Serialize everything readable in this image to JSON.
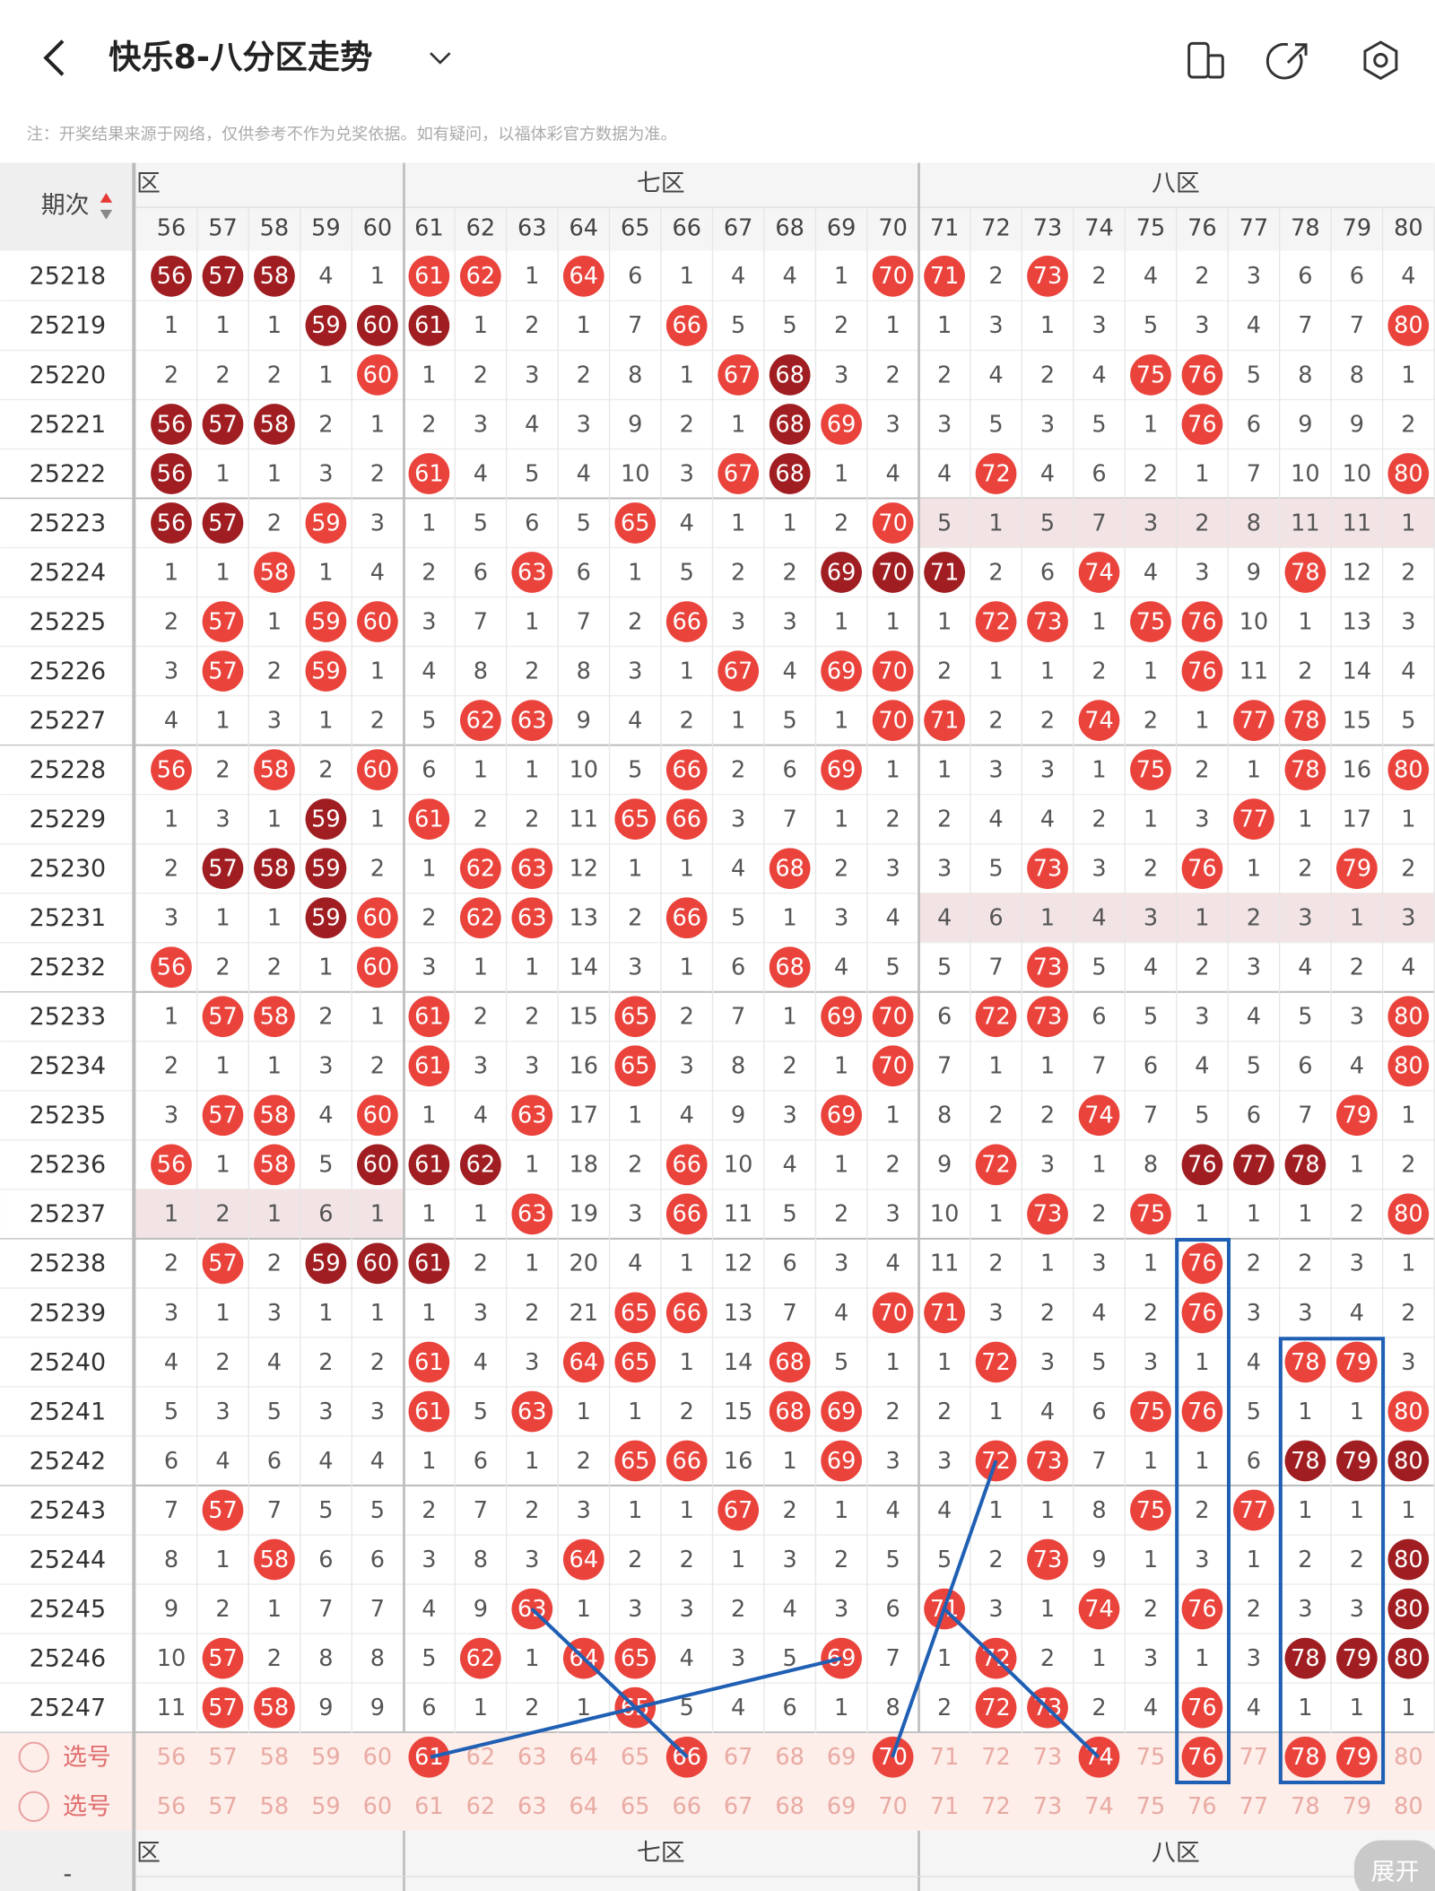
{
  "header": {
    "title": "快乐8-八分区走势",
    "note": "注：开奖结果来源于网络，仅供参考不作为兑奖依据。如有疑问，以福体彩官方数据为准。"
  },
  "table": {
    "corner_label": "期次",
    "zones": [
      "六区",
      "七区",
      "八区"
    ],
    "columns": [
      56,
      57,
      58,
      59,
      60,
      61,
      62,
      63,
      64,
      65,
      66,
      67,
      68,
      69,
      70,
      71,
      72,
      73,
      74,
      75,
      76,
      77,
      78,
      79,
      80
    ],
    "rows": [
      {
        "issue": "25218",
        "cells": [
          56,
          57,
          58,
          4,
          1,
          61,
          62,
          1,
          64,
          6,
          1,
          4,
          4,
          1,
          70,
          71,
          2,
          73,
          2,
          4,
          2,
          3,
          6,
          6,
          4
        ],
        "dark": [
          56,
          57,
          58
        ]
      },
      {
        "issue": "25219",
        "cells": [
          1,
          1,
          1,
          59,
          60,
          61,
          1,
          2,
          1,
          7,
          66,
          5,
          5,
          2,
          1,
          1,
          3,
          1,
          3,
          5,
          3,
          4,
          7,
          7,
          80
        ],
        "dark": [
          59,
          60,
          61
        ]
      },
      {
        "issue": "25220",
        "cells": [
          2,
          2,
          2,
          1,
          60,
          1,
          2,
          3,
          2,
          8,
          1,
          67,
          68,
          3,
          2,
          2,
          4,
          2,
          4,
          75,
          76,
          5,
          8,
          8,
          1
        ],
        "dark": [
          68
        ]
      },
      {
        "issue": "25221",
        "cells": [
          56,
          57,
          58,
          2,
          1,
          2,
          3,
          4,
          3,
          9,
          2,
          1,
          68,
          69,
          3,
          3,
          5,
          3,
          5,
          1,
          76,
          6,
          9,
          9,
          2
        ],
        "dark": [
          56,
          57,
          58,
          68
        ]
      },
      {
        "issue": "25222",
        "cells": [
          56,
          1,
          1,
          3,
          2,
          61,
          4,
          5,
          4,
          10,
          3,
          67,
          68,
          1,
          4,
          4,
          72,
          4,
          6,
          2,
          1,
          7,
          10,
          10,
          80
        ],
        "dark": [
          56,
          68
        ]
      },
      {
        "issue": "25223",
        "cells": [
          56,
          57,
          2,
          59,
          3,
          1,
          5,
          6,
          5,
          65,
          4,
          1,
          1,
          2,
          70,
          5,
          1,
          5,
          7,
          3,
          2,
          8,
          11,
          11,
          1
        ],
        "dark": [
          56,
          57
        ],
        "highlight_zone": 2
      },
      {
        "issue": "25224",
        "cells": [
          1,
          1,
          58,
          1,
          4,
          2,
          6,
          63,
          6,
          1,
          5,
          2,
          2,
          69,
          70,
          71,
          2,
          6,
          74,
          4,
          3,
          9,
          78,
          12,
          2
        ],
        "dark": [
          69,
          70,
          71
        ]
      },
      {
        "issue": "25225",
        "cells": [
          2,
          57,
          1,
          59,
          60,
          3,
          7,
          1,
          7,
          2,
          66,
          3,
          3,
          1,
          1,
          1,
          72,
          73,
          1,
          75,
          76,
          10,
          1,
          13,
          3
        ]
      },
      {
        "issue": "25226",
        "cells": [
          3,
          57,
          2,
          59,
          1,
          4,
          8,
          2,
          8,
          3,
          1,
          67,
          4,
          69,
          70,
          2,
          1,
          1,
          2,
          1,
          76,
          11,
          2,
          14,
          4
        ]
      },
      {
        "issue": "25227",
        "cells": [
          4,
          1,
          3,
          1,
          2,
          5,
          62,
          63,
          9,
          4,
          2,
          1,
          5,
          1,
          70,
          71,
          2,
          2,
          74,
          2,
          1,
          77,
          78,
          15,
          5
        ]
      },
      {
        "issue": "25228",
        "cells": [
          56,
          2,
          58,
          2,
          60,
          6,
          1,
          1,
          10,
          5,
          66,
          2,
          6,
          69,
          1,
          1,
          3,
          3,
          1,
          75,
          2,
          1,
          78,
          16,
          80
        ]
      },
      {
        "issue": "25229",
        "cells": [
          1,
          3,
          1,
          59,
          1,
          61,
          2,
          2,
          11,
          65,
          66,
          3,
          7,
          1,
          2,
          2,
          4,
          4,
          2,
          1,
          3,
          77,
          1,
          17,
          1
        ],
        "dark": [
          59
        ]
      },
      {
        "issue": "25230",
        "cells": [
          2,
          57,
          58,
          59,
          2,
          1,
          62,
          63,
          12,
          1,
          1,
          4,
          68,
          2,
          3,
          3,
          5,
          73,
          3,
          2,
          76,
          1,
          2,
          79,
          2
        ],
        "dark": [
          57,
          58,
          59
        ]
      },
      {
        "issue": "25231",
        "cells": [
          3,
          1,
          1,
          59,
          60,
          2,
          62,
          63,
          13,
          2,
          66,
          5,
          1,
          3,
          4,
          4,
          6,
          1,
          4,
          3,
          1,
          2,
          3,
          1,
          3
        ],
        "dark": [
          59
        ],
        "highlight_zone": 2
      },
      {
        "issue": "25232",
        "cells": [
          56,
          2,
          2,
          1,
          60,
          3,
          1,
          1,
          14,
          3,
          1,
          6,
          68,
          4,
          5,
          5,
          7,
          73,
          5,
          4,
          2,
          3,
          4,
          2,
          4
        ]
      },
      {
        "issue": "25233",
        "cells": [
          1,
          57,
          58,
          2,
          1,
          61,
          2,
          2,
          15,
          65,
          2,
          7,
          1,
          69,
          70,
          6,
          72,
          73,
          6,
          5,
          3,
          4,
          5,
          3,
          80
        ]
      },
      {
        "issue": "25234",
        "cells": [
          2,
          1,
          1,
          3,
          2,
          61,
          3,
          3,
          16,
          65,
          3,
          8,
          2,
          1,
          70,
          7,
          1,
          1,
          7,
          6,
          4,
          5,
          6,
          4,
          80
        ]
      },
      {
        "issue": "25235",
        "cells": [
          3,
          57,
          58,
          4,
          60,
          1,
          4,
          63,
          17,
          1,
          4,
          9,
          3,
          69,
          1,
          8,
          2,
          2,
          74,
          7,
          5,
          6,
          7,
          79,
          1
        ]
      },
      {
        "issue": "25236",
        "cells": [
          56,
          1,
          58,
          5,
          60,
          61,
          62,
          1,
          18,
          2,
          66,
          10,
          4,
          1,
          2,
          9,
          72,
          3,
          1,
          8,
          76,
          77,
          78,
          1,
          2
        ],
        "dark": [
          60,
          61,
          62,
          76,
          77,
          78
        ]
      },
      {
        "issue": "25237",
        "cells": [
          1,
          2,
          1,
          6,
          1,
          1,
          1,
          63,
          19,
          3,
          66,
          11,
          5,
          2,
          3,
          10,
          1,
          73,
          2,
          75,
          1,
          1,
          1,
          2,
          80
        ],
        "highlight_zone": 0
      },
      {
        "issue": "25238",
        "cells": [
          2,
          57,
          2,
          59,
          60,
          61,
          2,
          1,
          20,
          4,
          1,
          12,
          6,
          3,
          4,
          11,
          2,
          1,
          3,
          1,
          76,
          2,
          2,
          3,
          1
        ],
        "dark": [
          59,
          60,
          61
        ]
      },
      {
        "issue": "25239",
        "cells": [
          3,
          1,
          3,
          1,
          1,
          1,
          3,
          2,
          21,
          65,
          66,
          13,
          7,
          4,
          70,
          71,
          3,
          2,
          4,
          2,
          76,
          3,
          3,
          4,
          2
        ]
      },
      {
        "issue": "25240",
        "cells": [
          4,
          2,
          4,
          2,
          2,
          61,
          4,
          3,
          64,
          65,
          1,
          14,
          68,
          5,
          1,
          1,
          72,
          3,
          5,
          3,
          1,
          4,
          78,
          79,
          3
        ]
      },
      {
        "issue": "25241",
        "cells": [
          5,
          3,
          5,
          3,
          3,
          61,
          5,
          63,
          1,
          1,
          2,
          15,
          68,
          69,
          2,
          2,
          1,
          4,
          6,
          75,
          76,
          5,
          1,
          1,
          80
        ]
      },
      {
        "issue": "25242",
        "cells": [
          6,
          4,
          6,
          4,
          4,
          1,
          6,
          1,
          2,
          65,
          66,
          16,
          1,
          69,
          3,
          3,
          72,
          73,
          7,
          1,
          1,
          6,
          78,
          79,
          80
        ],
        "dark": [
          78,
          79,
          80
        ]
      },
      {
        "issue": "25243",
        "cells": [
          7,
          57,
          7,
          5,
          5,
          2,
          7,
          2,
          3,
          1,
          1,
          67,
          2,
          1,
          4,
          4,
          1,
          1,
          8,
          75,
          2,
          77,
          1,
          1,
          1
        ]
      },
      {
        "issue": "25244",
        "cells": [
          8,
          1,
          58,
          6,
          6,
          3,
          8,
          3,
          64,
          2,
          2,
          1,
          3,
          2,
          5,
          5,
          2,
          73,
          9,
          1,
          3,
          1,
          2,
          2,
          80
        ],
        "dark": [
          80
        ]
      },
      {
        "issue": "25245",
        "cells": [
          9,
          2,
          1,
          7,
          7,
          4,
          9,
          63,
          1,
          3,
          3,
          2,
          4,
          3,
          6,
          71,
          3,
          1,
          74,
          2,
          76,
          2,
          3,
          3,
          80
        ],
        "dark": [
          80
        ]
      },
      {
        "issue": "25246",
        "cells": [
          10,
          57,
          2,
          8,
          8,
          5,
          62,
          1,
          64,
          65,
          4,
          3,
          5,
          69,
          7,
          1,
          72,
          2,
          1,
          3,
          1,
          3,
          78,
          79,
          80
        ],
        "dark": [
          78,
          79,
          80
        ]
      },
      {
        "issue": "25247",
        "cells": [
          11,
          57,
          58,
          9,
          9,
          6,
          1,
          2,
          1,
          65,
          5,
          4,
          6,
          1,
          8,
          2,
          72,
          73,
          2,
          4,
          76,
          4,
          1,
          1,
          1
        ]
      }
    ],
    "selection_rows": [
      {
        "label": "选号",
        "cells": [
          56,
          57,
          58,
          59,
          60,
          61,
          62,
          63,
          64,
          65,
          66,
          67,
          68,
          69,
          70,
          71,
          72,
          73,
          74,
          75,
          76,
          77,
          78,
          79,
          80
        ],
        "selected": [
          61,
          66,
          70,
          74,
          76,
          78,
          79
        ]
      },
      {
        "label": "选号",
        "cells": [
          56,
          57,
          58,
          59,
          60,
          61,
          62,
          63,
          64,
          65,
          66,
          67,
          68,
          69,
          70,
          71,
          72,
          73,
          74,
          75,
          76,
          77,
          78,
          79,
          80
        ]
      }
    ],
    "footer_label": "-",
    "expand_button": "展开"
  }
}
